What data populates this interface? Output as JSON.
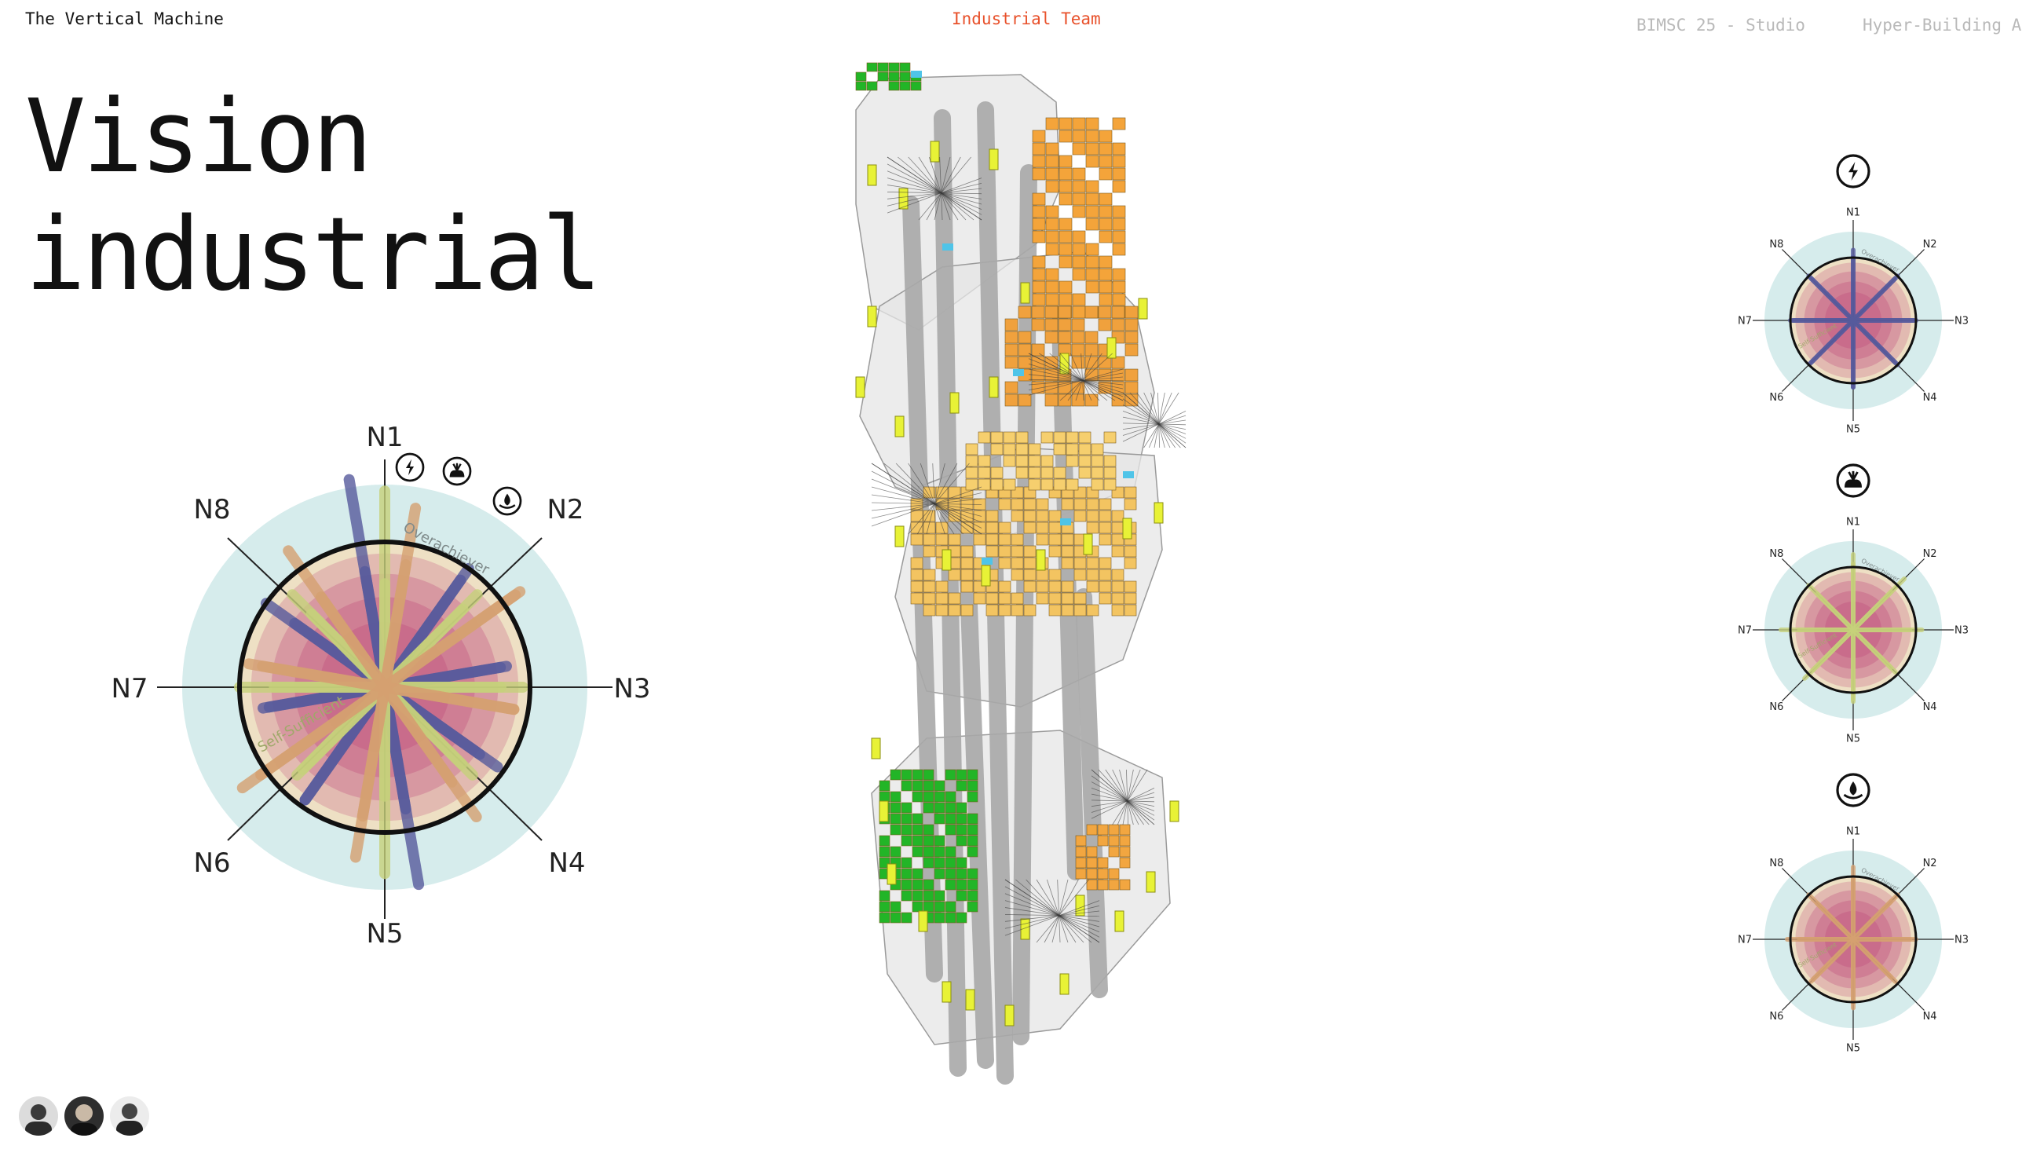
{
  "header": {
    "brand": "The Vertical Machine",
    "team": "Industrial Team",
    "studio": "BIMSC 25 - Studio",
    "project": "Hyper-Building A"
  },
  "title": {
    "line1": "Vision",
    "line2": "industrial"
  },
  "radar_main": {
    "labels": [
      "N1",
      "N2",
      "N3",
      "N4",
      "N5",
      "N6",
      "N7",
      "N8"
    ],
    "ring_outer_label": "Overachiever",
    "ring_inner_label": "Self-Sufficient",
    "icons": [
      "energy-icon",
      "food-icon",
      "water-icon"
    ],
    "series": [
      {
        "name": "energy",
        "color": "#565a9c",
        "values": [
          1.45,
          1.0,
          0.85,
          0.8,
          0.85,
          0.95,
          0.85,
          1.0
        ]
      },
      {
        "name": "food",
        "color": "#c6d17a",
        "values": [
          1.35,
          0.9,
          0.8,
          0.75,
          0.75,
          0.8,
          1.0,
          0.9
        ]
      },
      {
        "name": "water",
        "color": "#d4a070",
        "values": [
          1.25,
          1.1,
          0.9,
          0.8,
          0.9,
          1.2,
          0.95,
          1.15
        ]
      }
    ]
  },
  "radar_small": [
    {
      "icon": "energy-icon",
      "color": "#565a9c",
      "labels": [
        "N1",
        "N2",
        "N3",
        "N4",
        "N5",
        "N6",
        "N7",
        "N8"
      ],
      "outer_label": "Overachiever",
      "inner_label": "Self-Sufficient",
      "values": [
        1.12,
        1.0,
        1.0,
        1.0,
        1.06,
        0.98,
        1.0,
        1.0
      ]
    },
    {
      "icon": "food-icon",
      "color": "#c6d17a",
      "labels": [
        "N1",
        "N2",
        "N3",
        "N4",
        "N5",
        "N6",
        "N7",
        "N8"
      ],
      "outer_label": "Overachiever",
      "inner_label": "Self-Sufficient",
      "values": [
        1.2,
        1.15,
        0.9,
        0.85,
        1.1,
        0.9,
        1.15,
        1.0
      ]
    },
    {
      "icon": "water-icon",
      "color": "#d4a070",
      "labels": [
        "N1",
        "N2",
        "N3",
        "N4",
        "N5",
        "N6",
        "N7",
        "N8"
      ],
      "outer_label": "Overachiever",
      "inner_label": "Self-Sufficient",
      "values": [
        1.15,
        1.0,
        0.9,
        0.85,
        1.0,
        0.9,
        1.05,
        1.0
      ]
    }
  ],
  "colors": {
    "accent": "#e8512b",
    "ring": "#d6ecec",
    "cream": "#eee0c4",
    "pink": "#c45a83",
    "orange": "#f4a43a",
    "green": "#22b527",
    "yellow": "#e8f236",
    "cyan": "#4fc4e8",
    "gray": "#a9a9a9"
  },
  "team": {
    "members": [
      "member-1-avatar",
      "member-2-avatar",
      "member-3-avatar"
    ]
  }
}
